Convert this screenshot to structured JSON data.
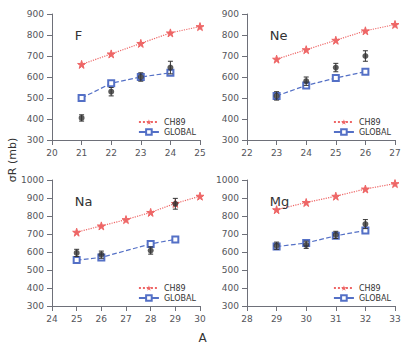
{
  "chart_data": [
    {
      "type": "line",
      "title": "F",
      "legend": "lower right",
      "grid": false,
      "xlim": [
        20,
        25
      ],
      "xticks": [
        20,
        21,
        22,
        23,
        24,
        25
      ],
      "ylim": [
        300,
        900
      ],
      "yticks": [
        300,
        400,
        500,
        600,
        700,
        800,
        900
      ],
      "series": [
        {
          "name": "CH89",
          "type": "line",
          "line_style": "dotted",
          "marker": "star",
          "color": "#ee6666",
          "x": [
            21,
            22,
            23,
            24,
            25
          ],
          "values": [
            660,
            710,
            760,
            810,
            840
          ]
        },
        {
          "name": "GLOBAL",
          "type": "line",
          "line_style": "dashed",
          "marker": "square",
          "color": "#5470c6",
          "x": [
            21,
            22,
            23,
            24
          ],
          "values": [
            500,
            570,
            600,
            620
          ]
        },
        {
          "type": "scatter",
          "marker": "circle",
          "color": "#333333",
          "x": [
            21,
            22,
            23,
            24
          ],
          "values": [
            405,
            530,
            600,
            645
          ],
          "error": [
            15,
            20,
            20,
            30
          ]
        }
      ]
    },
    {
      "type": "line",
      "title": "Ne",
      "legend": "lower right",
      "grid": false,
      "xlim": [
        22,
        27
      ],
      "xticks": [
        22,
        23,
        24,
        25,
        26,
        27
      ],
      "ylim": [
        300,
        900
      ],
      "yticks": [
        300,
        400,
        500,
        600,
        700,
        800,
        900
      ],
      "series": [
        {
          "name": "CH89",
          "type": "line",
          "line_style": "dotted",
          "marker": "star",
          "color": "#ee6666",
          "x": [
            23,
            24,
            25,
            26,
            27
          ],
          "values": [
            685,
            730,
            775,
            820,
            850
          ]
        },
        {
          "name": "GLOBAL",
          "type": "line",
          "line_style": "dashed",
          "marker": "square",
          "color": "#5470c6",
          "x": [
            23,
            24,
            25,
            26
          ],
          "values": [
            510,
            560,
            595,
            625
          ]
        },
        {
          "type": "scatter",
          "marker": "circle",
          "color": "#333333",
          "x": [
            23,
            24,
            25,
            26
          ],
          "values": [
            510,
            580,
            645,
            700
          ],
          "error": [
            20,
            20,
            20,
            25
          ]
        }
      ]
    },
    {
      "type": "line",
      "title": "Na",
      "legend": "lower right",
      "grid": false,
      "xlim": [
        24,
        30
      ],
      "xticks": [
        24,
        25,
        26,
        27,
        28,
        29,
        30
      ],
      "ylim": [
        300,
        1000
      ],
      "yticks": [
        300,
        400,
        500,
        600,
        700,
        800,
        900,
        1000
      ],
      "series": [
        {
          "name": "CH89",
          "type": "line",
          "line_style": "dotted",
          "marker": "star",
          "color": "#ee6666",
          "x": [
            25,
            26,
            27,
            28,
            29,
            30
          ],
          "values": [
            710,
            745,
            780,
            820,
            870,
            910
          ]
        },
        {
          "name": "GLOBAL",
          "type": "line",
          "line_style": "dashed",
          "marker": "square",
          "color": "#5470c6",
          "x": [
            25,
            26,
            28,
            29
          ],
          "values": [
            555,
            570,
            645,
            670
          ]
        },
        {
          "type": "scatter",
          "marker": "circle",
          "color": "#333333",
          "x": [
            25,
            26,
            28,
            29
          ],
          "values": [
            595,
            585,
            608,
            868
          ],
          "error": [
            20,
            20,
            20,
            30
          ]
        }
      ]
    },
    {
      "type": "line",
      "title": "Mg",
      "legend": "lower right",
      "grid": false,
      "xlim": [
        28,
        33
      ],
      "xticks": [
        28,
        29,
        30,
        31,
        32,
        33
      ],
      "ylim": [
        300,
        1000
      ],
      "yticks": [
        300,
        400,
        500,
        600,
        700,
        800,
        900,
        1000
      ],
      "series": [
        {
          "name": "CH89",
          "type": "line",
          "line_style": "dotted",
          "marker": "star",
          "color": "#ee6666",
          "x": [
            29,
            30,
            31,
            32,
            33
          ],
          "values": [
            835,
            875,
            910,
            950,
            980
          ]
        },
        {
          "name": "GLOBAL",
          "type": "line",
          "line_style": "dashed",
          "marker": "square",
          "color": "#5470c6",
          "x": [
            29,
            30,
            31,
            32
          ],
          "values": [
            630,
            650,
            690,
            720
          ]
        },
        {
          "type": "scatter",
          "marker": "circle",
          "color": "#333333",
          "x": [
            29,
            30,
            31,
            32
          ],
          "values": [
            635,
            640,
            695,
            755
          ],
          "error": [
            20,
            20,
            20,
            25
          ]
        }
      ]
    }
  ],
  "xlabel": "A",
  "ylabel": "σR (mb)"
}
